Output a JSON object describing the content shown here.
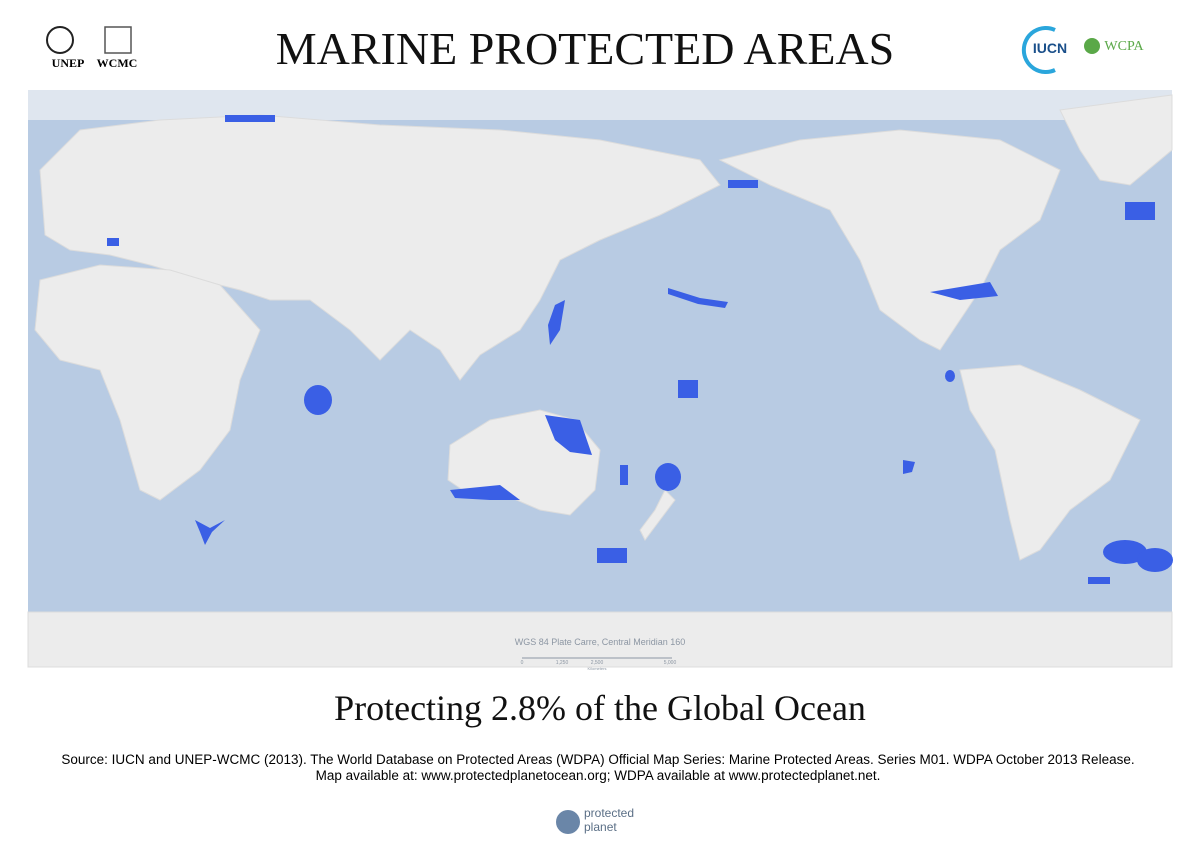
{
  "header": {
    "title": "MARINE PROTECTED AREAS",
    "logos": [
      "UNEP",
      "WCMC",
      "IUCN",
      "WCPA"
    ]
  },
  "map": {
    "projection": "WGS 84 Plate Carre, Central Meridian 160",
    "scale": {
      "ticks": [
        "0",
        "1,250",
        "2,500",
        "5,000"
      ],
      "unit": "Kilometers"
    }
  },
  "subtitle": "Protecting 2.8% of the Global Ocean",
  "source": [
    "Source: IUCN and UNEP-WCMC (2013). The World Database on Protected Areas (WDPA) Official Map Series: Marine Protected Areas. Series M01. WDPA October 2013 Release.",
    "Map available at: www.protectedplanetocean.org; WDPA available at www.protectedplanet.net."
  ],
  "footer_logo": [
    "protected",
    "planet"
  ]
}
